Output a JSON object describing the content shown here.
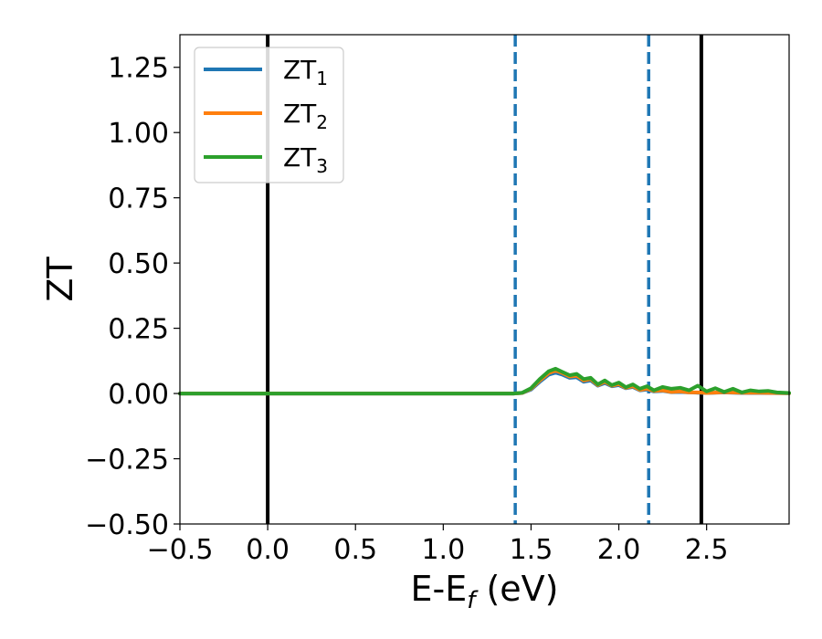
{
  "chart_data": {
    "type": "line",
    "title": "",
    "xlabel": {
      "main": "E-E",
      "sub": "f",
      "unit": " (eV)"
    },
    "ylabel": "ZT",
    "xlim": [
      -0.5,
      2.97
    ],
    "ylim": [
      -0.5,
      1.375
    ],
    "x_ticks": [
      -0.5,
      0.0,
      0.5,
      1.0,
      1.5,
      2.0,
      2.5
    ],
    "x_tick_labels": [
      "−0.5",
      "0.0",
      "0.5",
      "1.0",
      "1.5",
      "2.0",
      "2.5"
    ],
    "y_ticks": [
      -0.5,
      -0.25,
      0.0,
      0.25,
      0.5,
      0.75,
      1.0,
      1.25
    ],
    "y_tick_labels": [
      "−0.50",
      "−0.25",
      "0.00",
      "0.25",
      "0.50",
      "0.75",
      "1.00",
      "1.25"
    ],
    "grid": false,
    "legend_position": "top-left",
    "vertical_lines": [
      {
        "x": 0.0,
        "color": "#000000",
        "style": "solid"
      },
      {
        "x": 2.47,
        "color": "#000000",
        "style": "solid"
      },
      {
        "x": 1.41,
        "color": "#1f77b4",
        "style": "dashed"
      },
      {
        "x": 2.17,
        "color": "#1f77b4",
        "style": "dashed"
      }
    ],
    "series": [
      {
        "name": "ZT",
        "sub": "1",
        "color": "#1f77b4",
        "x": [
          -0.5,
          1.4,
          1.45,
          1.5,
          1.55,
          1.6,
          1.64,
          1.68,
          1.72,
          1.76,
          1.8,
          1.84,
          1.88,
          1.92,
          1.96,
          2.0,
          2.04,
          2.08,
          2.12,
          2.16,
          2.2,
          2.25,
          2.3,
          2.35,
          2.4,
          2.45,
          2.5,
          2.6,
          2.7,
          2.8,
          2.97
        ],
        "y": [
          0.0,
          0.0,
          0.002,
          0.015,
          0.045,
          0.072,
          0.08,
          0.072,
          0.06,
          0.062,
          0.045,
          0.05,
          0.03,
          0.04,
          0.028,
          0.032,
          0.02,
          0.025,
          0.012,
          0.015,
          0.008,
          0.01,
          0.005,
          0.006,
          0.004,
          0.003,
          0.002,
          0.004,
          0.002,
          0.002,
          0.001
        ]
      },
      {
        "name": "ZT",
        "sub": "2",
        "color": "#ff7f0e",
        "x": [
          -0.5,
          1.4,
          1.45,
          1.5,
          1.55,
          1.6,
          1.64,
          1.68,
          1.72,
          1.76,
          1.8,
          1.84,
          1.88,
          1.92,
          1.96,
          2.0,
          2.04,
          2.08,
          2.12,
          2.16,
          2.2,
          2.25,
          2.3,
          2.35,
          2.4,
          2.45,
          2.5,
          2.6,
          2.7,
          2.8,
          2.97
        ],
        "y": [
          0.0,
          0.0,
          0.002,
          0.018,
          0.05,
          0.078,
          0.088,
          0.078,
          0.065,
          0.068,
          0.05,
          0.055,
          0.032,
          0.045,
          0.03,
          0.036,
          0.022,
          0.028,
          0.014,
          0.018,
          0.01,
          0.012,
          0.006,
          0.008,
          0.004,
          0.004,
          0.002,
          0.005,
          0.003,
          0.003,
          0.001
        ]
      },
      {
        "name": "ZT",
        "sub": "3",
        "color": "#2ca02c",
        "x": [
          -0.5,
          1.4,
          1.45,
          1.5,
          1.55,
          1.6,
          1.64,
          1.68,
          1.72,
          1.76,
          1.8,
          1.84,
          1.88,
          1.92,
          1.96,
          2.0,
          2.04,
          2.08,
          2.12,
          2.16,
          2.2,
          2.25,
          2.3,
          2.35,
          2.4,
          2.45,
          2.5,
          2.55,
          2.6,
          2.65,
          2.7,
          2.75,
          2.8,
          2.85,
          2.9,
          2.97
        ],
        "y": [
          0.0,
          0.0,
          0.003,
          0.02,
          0.055,
          0.085,
          0.095,
          0.082,
          0.07,
          0.075,
          0.055,
          0.06,
          0.035,
          0.05,
          0.032,
          0.042,
          0.024,
          0.035,
          0.018,
          0.028,
          0.012,
          0.025,
          0.018,
          0.022,
          0.012,
          0.03,
          0.008,
          0.02,
          0.006,
          0.018,
          0.004,
          0.012,
          0.008,
          0.01,
          0.004,
          0.002
        ]
      }
    ]
  }
}
